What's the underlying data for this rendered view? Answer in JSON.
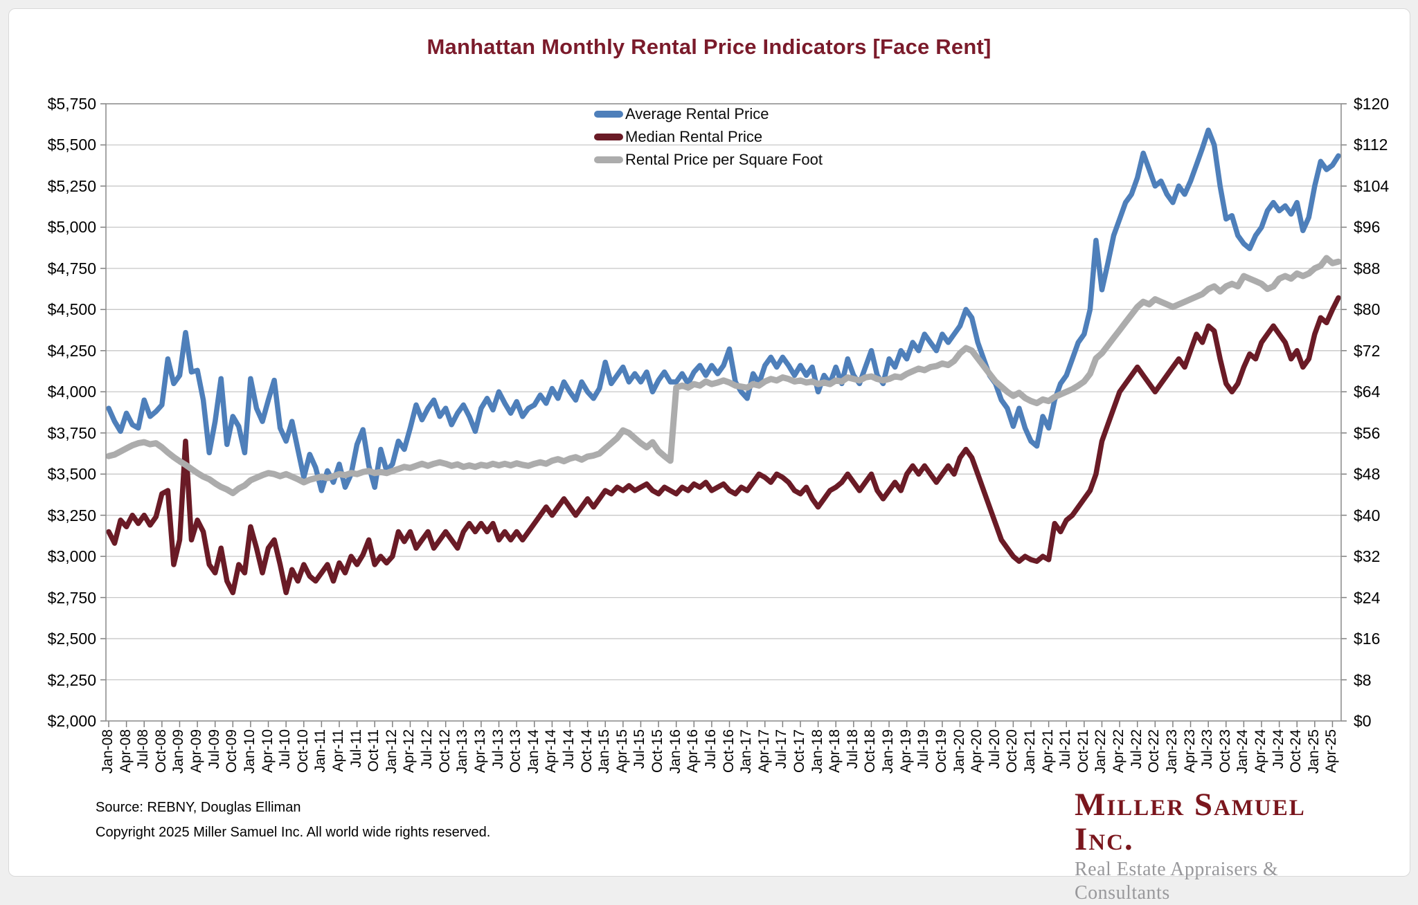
{
  "title": "Manhattan Monthly Rental Price Indicators [Face Rent]",
  "footer": {
    "source": "Source: REBNY, Douglas Elliman",
    "copyright": "Copyright 2025 Miller Samuel Inc.  All world wide rights reserved."
  },
  "logo": {
    "name": "Miller Samuel Inc.",
    "tagline": "Real Estate Appraisers & Consultants"
  },
  "colors": {
    "title": "#7B1B2B",
    "logo_name": "#7A161D",
    "logo_tagline": "#98989B",
    "grid": "#c7c7c7",
    "plot_border": "#8f8f8f",
    "tick": "#7f7f7f",
    "background": "#efefef",
    "card": "#ffffff"
  },
  "chart_data": {
    "type": "line",
    "title": "Manhattan Monthly Rental Price Indicators [Face Rent]",
    "grid": "horizontal",
    "legend_position": "top-center",
    "x_start": "Jan-2008",
    "x_end": "May-2025",
    "x_frequency": "monthly",
    "points_per_series": 209,
    "x_tick_every_months": 3,
    "x_labels": [
      "Jan-08",
      "Apr-08",
      "Jul-08",
      "Oct-08",
      "Jan-09",
      "Apr-09",
      "Jul-09",
      "Oct-09",
      "Jan-10",
      "Apr-10",
      "Jul-10",
      "Oct-10",
      "Jan-11",
      "Apr-11",
      "Jul-11",
      "Oct-11",
      "Jan-12",
      "Apr-12",
      "Jul-12",
      "Oct-12",
      "Jan-13",
      "Apr-13",
      "Jul-13",
      "Oct-13",
      "Jan-14",
      "Apr-14",
      "Jul-14",
      "Oct-14",
      "Jan-15",
      "Apr-15",
      "Jul-15",
      "Oct-15",
      "Jan-16",
      "Apr-16",
      "Jul-16",
      "Oct-16",
      "Jan-17",
      "Apr-17",
      "Jul-17",
      "Oct-17",
      "Jan-18",
      "Apr-18",
      "Jul-18",
      "Oct-18",
      "Jan-19",
      "Apr-19",
      "Jul-19",
      "Oct-19",
      "Jan-20",
      "Apr-20",
      "Jul-20",
      "Oct-20",
      "Jan-21",
      "Apr-21",
      "Jul-21",
      "Oct-21",
      "Jan-22",
      "Apr-22",
      "Jul-22",
      "Oct-22",
      "Jan-23",
      "Apr-23",
      "Jul-23",
      "Oct-23",
      "Jan-24",
      "Apr-24",
      "Jul-24",
      "Oct-24",
      "Jan-25",
      "Apr-25"
    ],
    "y_left": {
      "min": 2000,
      "max": 5750,
      "tick_step": 250,
      "ticks": [
        "$5,750",
        "$5,500",
        "$5,250",
        "$5,000",
        "$4,750",
        "$4,500",
        "$4,250",
        "$4,000",
        "$3,750",
        "$3,500",
        "$3,250",
        "$3,000",
        "$2,750",
        "$2,500",
        "$2,250",
        "$2,000"
      ]
    },
    "y_right": {
      "min": 0,
      "max": 120,
      "tick_step": 8,
      "ticks": [
        "$120",
        "$112",
        "$104",
        "$96",
        "$88",
        "$80",
        "$72",
        "$64",
        "$56",
        "$48",
        "$40",
        "$32",
        "$24",
        "$16",
        "$8",
        "$0"
      ]
    },
    "series": [
      {
        "name": "Average Rental Price",
        "color": "#4E7FBA",
        "axis": "left",
        "stroke_width": 7.5,
        "values": [
          3900,
          3820,
          3760,
          3870,
          3800,
          3780,
          3950,
          3850,
          3880,
          3920,
          4200,
          4050,
          4100,
          4360,
          4120,
          4130,
          3950,
          3630,
          3820,
          4080,
          3680,
          3850,
          3790,
          3630,
          4080,
          3900,
          3820,
          3950,
          4070,
          3780,
          3700,
          3820,
          3650,
          3480,
          3620,
          3540,
          3400,
          3520,
          3450,
          3560,
          3420,
          3500,
          3680,
          3770,
          3550,
          3420,
          3650,
          3520,
          3560,
          3700,
          3650,
          3780,
          3920,
          3830,
          3900,
          3950,
          3850,
          3900,
          3800,
          3870,
          3920,
          3850,
          3760,
          3900,
          3960,
          3890,
          4000,
          3930,
          3870,
          3940,
          3850,
          3900,
          3920,
          3980,
          3930,
          4020,
          3960,
          4060,
          4000,
          3950,
          4060,
          4000,
          3960,
          4020,
          4180,
          4050,
          4100,
          4150,
          4060,
          4110,
          4060,
          4120,
          4000,
          4070,
          4120,
          4060,
          4060,
          4110,
          4050,
          4120,
          4160,
          4100,
          4160,
          4110,
          4160,
          4260,
          4060,
          4000,
          3960,
          4110,
          4050,
          4160,
          4210,
          4150,
          4210,
          4160,
          4100,
          4160,
          4100,
          4150,
          4000,
          4100,
          4050,
          4150,
          4050,
          4200,
          4100,
          4050,
          4150,
          4250,
          4100,
          4050,
          4200,
          4150,
          4250,
          4200,
          4300,
          4250,
          4350,
          4300,
          4250,
          4350,
          4300,
          4350,
          4400,
          4500,
          4450,
          4300,
          4200,
          4100,
          4050,
          3950,
          3900,
          3790,
          3900,
          3780,
          3700,
          3670,
          3850,
          3780,
          3950,
          4050,
          4100,
          4200,
          4300,
          4350,
          4500,
          4920,
          4620,
          4780,
          4950,
          5050,
          5150,
          5200,
          5300,
          5450,
          5350,
          5250,
          5280,
          5200,
          5150,
          5250,
          5200,
          5280,
          5380,
          5480,
          5590,
          5500,
          5250,
          5050,
          5070,
          4950,
          4900,
          4870,
          4950,
          5000,
          5100,
          5150,
          5100,
          5130,
          5080,
          5150,
          4980,
          5060,
          5250,
          5400,
          5350,
          5377,
          5434
        ]
      },
      {
        "name": "Median Rental Price",
        "color": "#6A1B26",
        "axis": "left",
        "stroke_width": 7.5,
        "values": [
          3150,
          3080,
          3220,
          3180,
          3250,
          3200,
          3250,
          3190,
          3240,
          3380,
          3400,
          2950,
          3100,
          3700,
          3100,
          3220,
          3150,
          2950,
          2900,
          3050,
          2850,
          2780,
          2950,
          2900,
          3180,
          3050,
          2900,
          3050,
          3100,
          2950,
          2780,
          2920,
          2850,
          2950,
          2880,
          2850,
          2900,
          2950,
          2850,
          2960,
          2900,
          3000,
          2950,
          3010,
          3100,
          2950,
          3000,
          2960,
          3000,
          3150,
          3090,
          3150,
          3050,
          3100,
          3150,
          3050,
          3100,
          3150,
          3100,
          3050,
          3150,
          3200,
          3150,
          3200,
          3150,
          3200,
          3100,
          3150,
          3100,
          3150,
          3100,
          3150,
          3200,
          3250,
          3300,
          3250,
          3300,
          3350,
          3300,
          3250,
          3300,
          3350,
          3300,
          3350,
          3400,
          3380,
          3420,
          3400,
          3430,
          3400,
          3420,
          3440,
          3400,
          3380,
          3420,
          3400,
          3380,
          3420,
          3400,
          3440,
          3420,
          3450,
          3400,
          3420,
          3440,
          3400,
          3380,
          3420,
          3400,
          3450,
          3500,
          3480,
          3450,
          3500,
          3480,
          3450,
          3400,
          3380,
          3420,
          3350,
          3300,
          3350,
          3400,
          3420,
          3450,
          3500,
          3450,
          3400,
          3450,
          3500,
          3400,
          3350,
          3400,
          3450,
          3400,
          3500,
          3550,
          3500,
          3550,
          3500,
          3450,
          3500,
          3550,
          3500,
          3600,
          3650,
          3600,
          3500,
          3400,
          3300,
          3200,
          3100,
          3050,
          3000,
          2970,
          3000,
          2980,
          2970,
          3000,
          2980,
          3200,
          3150,
          3220,
          3250,
          3300,
          3350,
          3400,
          3500,
          3700,
          3800,
          3900,
          4000,
          4050,
          4100,
          4150,
          4100,
          4050,
          4000,
          4050,
          4100,
          4150,
          4200,
          4150,
          4250,
          4350,
          4300,
          4400,
          4370,
          4200,
          4050,
          4000,
          4050,
          4150,
          4230,
          4200,
          4300,
          4350,
          4400,
          4350,
          4300,
          4200,
          4250,
          4150,
          4200,
          4350,
          4450,
          4420,
          4500,
          4571
        ]
      },
      {
        "name": "Rental Price per Square Foot",
        "color": "#ACACAC",
        "axis": "right",
        "stroke_width": 9,
        "values": [
          51.5,
          51.8,
          52.4,
          53.0,
          53.6,
          54.0,
          54.2,
          53.8,
          54.0,
          53.2,
          52.2,
          51.3,
          50.5,
          49.8,
          49.0,
          48.2,
          47.5,
          47.0,
          46.2,
          45.5,
          45.0,
          44.3,
          45.2,
          45.8,
          46.8,
          47.3,
          47.8,
          48.2,
          48.0,
          47.6,
          48.0,
          47.5,
          47.0,
          46.4,
          46.9,
          47.2,
          47.5,
          47.2,
          47.6,
          48.0,
          47.8,
          48.2,
          48.0,
          48.4,
          48.6,
          48.2,
          48.4,
          48.2,
          48.6,
          49.0,
          49.4,
          49.2,
          49.6,
          50.0,
          49.6,
          50.0,
          50.3,
          50.0,
          49.6,
          49.9,
          49.4,
          49.7,
          49.4,
          49.8,
          49.6,
          50.0,
          49.7,
          50.0,
          49.7,
          50.1,
          49.8,
          49.6,
          50.0,
          50.3,
          50.0,
          50.6,
          50.9,
          50.5,
          51.0,
          51.3,
          50.8,
          51.4,
          51.6,
          52.0,
          53.0,
          54.0,
          55.0,
          56.5,
          56.0,
          55.0,
          54.0,
          53.2,
          54.2,
          52.5,
          51.5,
          50.6,
          64.8,
          65.2,
          64.8,
          65.5,
          65.2,
          66.0,
          65.5,
          65.8,
          66.2,
          65.8,
          65.2,
          65.0,
          64.8,
          65.5,
          65.2,
          66.0,
          66.5,
          66.2,
          66.8,
          66.5,
          66.0,
          66.2,
          65.8,
          66.0,
          65.5,
          65.8,
          65.5,
          66.2,
          66.0,
          66.8,
          66.5,
          66.2,
          66.8,
          67.0,
          66.5,
          66.2,
          66.5,
          67.0,
          66.8,
          67.5,
          68.0,
          68.5,
          68.2,
          68.8,
          69.0,
          69.5,
          69.2,
          70.0,
          71.5,
          72.5,
          72.0,
          70.5,
          69.0,
          67.5,
          66.0,
          65.0,
          64.0,
          63.2,
          63.8,
          62.8,
          62.2,
          61.8,
          62.5,
          62.2,
          63.0,
          63.5,
          64.0,
          64.5,
          65.2,
          66.0,
          67.5,
          70.5,
          71.5,
          73.0,
          74.5,
          76.0,
          77.5,
          79.0,
          80.5,
          81.5,
          81.0,
          82.0,
          81.5,
          81.0,
          80.5,
          81.0,
          81.5,
          82.0,
          82.5,
          83.0,
          84.0,
          84.5,
          83.5,
          84.5,
          85.0,
          84.5,
          86.5,
          86.0,
          85.5,
          85.0,
          84.0,
          84.5,
          86.0,
          86.5,
          86.0,
          87.0,
          86.5,
          87.0,
          88.0,
          88.5,
          90.0,
          89.0,
          89.3
        ]
      }
    ]
  }
}
